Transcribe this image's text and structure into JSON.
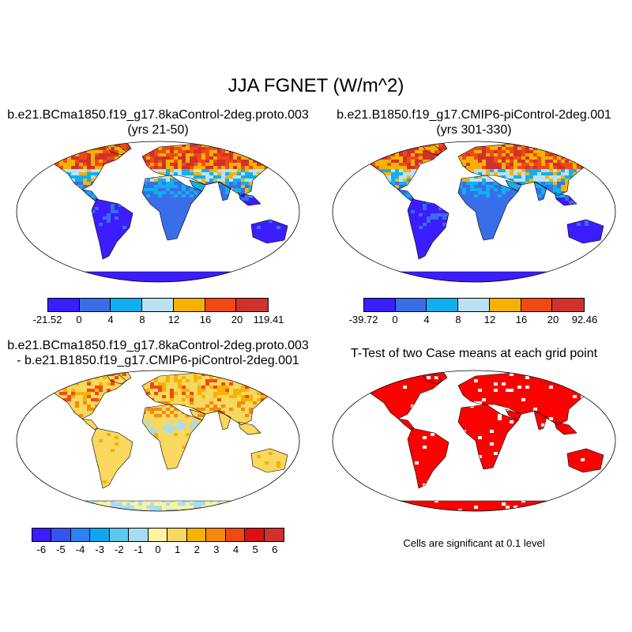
{
  "figure_title": "JJA FGNET (W/m^2)",
  "panels": [
    {
      "id": "case1",
      "title_line1": "b.e21.BCma1850.f19_g17.8kaControl-2deg.proto.003",
      "title_line2": "(yrs 21-50)",
      "colorbar": {
        "colors": [
          "#3b1dff",
          "#3a6ee8",
          "#12aff0",
          "#b9e3f5",
          "#f7b200",
          "#f04a12",
          "#d0312d"
        ],
        "labels": [
          "-21.52",
          "0",
          "4",
          "8",
          "12",
          "16",
          "20",
          "119.41"
        ]
      }
    },
    {
      "id": "case2",
      "title_line1": "b.e21.B1850.f19_g17.CMIP6-piControl-2deg.001",
      "title_line2": "(yrs 301-330)",
      "colorbar": {
        "colors": [
          "#3b1dff",
          "#3a6ee8",
          "#12aff0",
          "#b9e3f5",
          "#f7b200",
          "#f04a12",
          "#d0312d"
        ],
        "labels": [
          "-39.72",
          "0",
          "4",
          "8",
          "12",
          "16",
          "20",
          "92.46"
        ]
      }
    },
    {
      "id": "difference",
      "title_line1": "b.e21.BCma1850.f19_g17.8kaControl-2deg.proto.003",
      "title_line2": "- b.e21.B1850.f19_g17.CMIP6-piControl-2deg.001",
      "colorbar": {
        "colors": [
          "#3b1dff",
          "#3454f0",
          "#2c82f0",
          "#10a5ee",
          "#5cc8f0",
          "#a8dcf2",
          "#fdf3a0",
          "#f8d85e",
          "#f7b200",
          "#f48a0c",
          "#f04a12",
          "#dc1010",
          "#d0312d"
        ],
        "labels": [
          "-6",
          "-5",
          "-4",
          "-3",
          "-2",
          "-1",
          "0",
          "1",
          "2",
          "3",
          "4",
          "5",
          "6"
        ]
      }
    },
    {
      "id": "ttest",
      "title_line1": "T-Test of two Case means at each grid point",
      "title_line2": "",
      "note": "Cells are significant at 0.1 level"
    }
  ],
  "colors": {
    "ocean": "#ffffff",
    "coast": "#000000",
    "significant": "#ff0000",
    "diff_land": "#f8d85e"
  }
}
